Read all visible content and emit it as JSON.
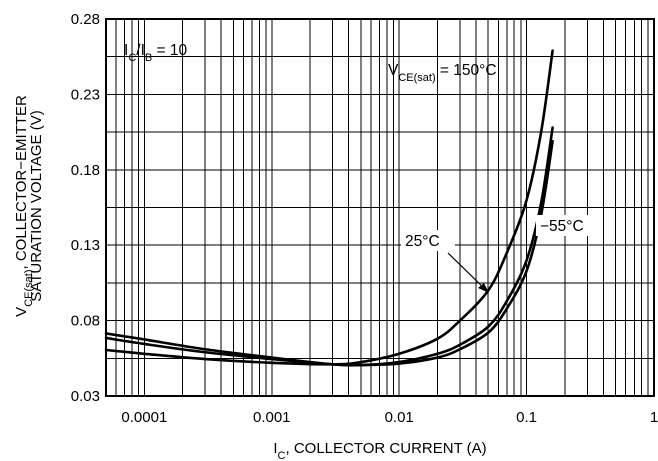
{
  "chart_data": {
    "type": "line",
    "title": "",
    "xlabel": {
      "main": "I",
      "sub": "C",
      "rest": ", COLLECTOR CURRENT (A)"
    },
    "ylabel": {
      "line1_main": "V",
      "line1_sub": "CE(sat)",
      "line1_rest": ", COLLECTOR−EMITTER",
      "line2": "SATURATION VOLTAGE (V)"
    },
    "x_scale": "log",
    "xlim": [
      5e-05,
      1
    ],
    "ylim": [
      0.03,
      0.28
    ],
    "x_ticks": [
      {
        "value": 0.0001,
        "label": "0.0001"
      },
      {
        "value": 0.001,
        "label": "0.001"
      },
      {
        "value": 0.01,
        "label": "0.01"
      },
      {
        "value": 0.1,
        "label": "0.1"
      },
      {
        "value": 1,
        "label": "1"
      }
    ],
    "y_ticks": [
      {
        "value": 0.03,
        "label": "0.03"
      },
      {
        "value": 0.08,
        "label": "0.08"
      },
      {
        "value": 0.13,
        "label": "0.13"
      },
      {
        "value": 0.18,
        "label": "0.18"
      },
      {
        "value": 0.23,
        "label": "0.23"
      },
      {
        "value": 0.28,
        "label": "0.28"
      }
    ],
    "grid": true,
    "series": [
      {
        "name": "150°C",
        "points": [
          [
            5e-05,
            0.0605
          ],
          [
            0.0001,
            0.058
          ],
          [
            0.0003,
            0.0545
          ],
          [
            0.001,
            0.052
          ],
          [
            0.003,
            0.051
          ],
          [
            0.005,
            0.0525
          ],
          [
            0.01,
            0.058
          ],
          [
            0.02,
            0.068
          ],
          [
            0.03,
            0.08
          ],
          [
            0.05,
            0.1
          ],
          [
            0.07,
            0.125
          ],
          [
            0.1,
            0.16
          ],
          [
            0.13,
            0.205
          ],
          [
            0.16,
            0.259
          ]
        ]
      },
      {
        "name": "25°C",
        "points": [
          [
            5e-05,
            0.0685
          ],
          [
            0.0001,
            0.0645
          ],
          [
            0.0003,
            0.059
          ],
          [
            0.001,
            0.0545
          ],
          [
            0.003,
            0.051
          ],
          [
            0.005,
            0.0505
          ],
          [
            0.01,
            0.0525
          ],
          [
            0.02,
            0.058
          ],
          [
            0.03,
            0.064
          ],
          [
            0.05,
            0.076
          ],
          [
            0.07,
            0.093
          ],
          [
            0.1,
            0.12
          ],
          [
            0.13,
            0.158
          ],
          [
            0.16,
            0.208
          ]
        ]
      },
      {
        "name": "−55°C",
        "points": [
          [
            5e-05,
            0.0715
          ],
          [
            0.0001,
            0.0675
          ],
          [
            0.0003,
            0.061
          ],
          [
            0.001,
            0.0555
          ],
          [
            0.003,
            0.051
          ],
          [
            0.005,
            0.0505
          ],
          [
            0.01,
            0.0515
          ],
          [
            0.02,
            0.0555
          ],
          [
            0.03,
            0.061
          ],
          [
            0.05,
            0.072
          ],
          [
            0.07,
            0.088
          ],
          [
            0.1,
            0.113
          ],
          [
            0.13,
            0.15
          ],
          [
            0.16,
            0.199
          ]
        ]
      }
    ],
    "annotations": {
      "condition": {
        "main": "I",
        "sub": "C",
        "mid": "/I",
        "sub2": "B",
        "rest": " = 10"
      },
      "label_150": {
        "main": "V",
        "sub": "CE(sat)",
        "rest": " = 150°C"
      },
      "label_25": "25°C",
      "label_m55": "−55°C"
    }
  }
}
